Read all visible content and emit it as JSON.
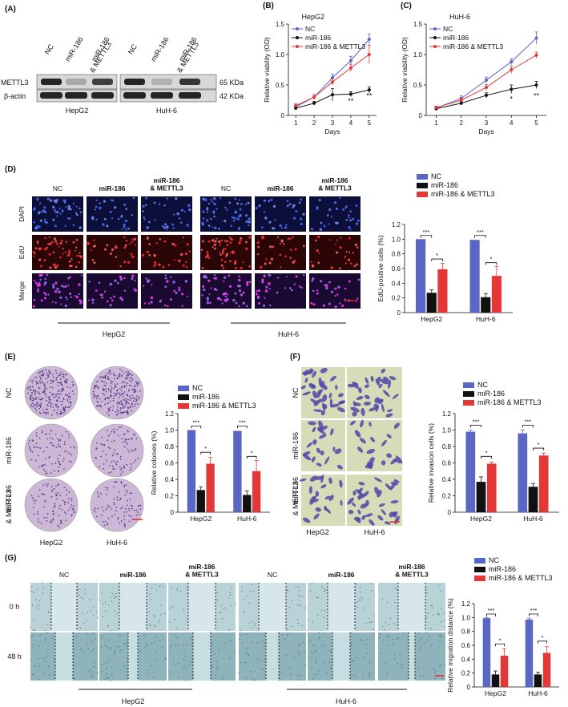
{
  "colors": {
    "nc": "#5a66c4",
    "mir": "#111111",
    "combo": "#e23838",
    "dapi_bg": "#0c0f3a",
    "edu_bg": "#2a0606",
    "merge_bg": "#1a0930",
    "wound_bg": "#b9d2d8",
    "wound_bg2": "#8fb3ba",
    "dish": "#cdb7d6",
    "stain": "#d7dcb8"
  },
  "legend": {
    "nc": "NC",
    "mir": "miR-186",
    "combo": "miR-186 & METTL3"
  },
  "legend_combo_multiline": {
    "line1": "miR-186",
    "line2": "& METTL3"
  },
  "panelA": {
    "label": "(A)",
    "lanes": [
      "NC",
      "miR-186",
      "miR-186\n& METTL3",
      "NC",
      "miR-186",
      "miR-186\n& METTL3"
    ],
    "rows": [
      "METTL3",
      "β-actin"
    ],
    "sizes": [
      "65 KDa",
      "42 KDa"
    ],
    "groups": [
      "HepG2",
      "HuH-6"
    ],
    "band_intensity": {
      "METTL3": [
        0.95,
        0.25,
        0.8,
        0.95,
        0.2,
        0.85
      ],
      "beta_actin": [
        0.95,
        0.95,
        0.95,
        0.95,
        0.95,
        0.95
      ]
    }
  },
  "panelD": {
    "label": "(D)",
    "cols": [
      "NC",
      "miR-186",
      "miR-186\n& METTL3",
      "NC",
      "miR-186",
      "miR-186\n& METTL3"
    ],
    "rows": [
      "DAPI",
      "EdU",
      "Merge"
    ],
    "groups": [
      "HepG2",
      "HuH-6"
    ]
  },
  "panelE": {
    "label": "(E)",
    "rows": [
      "NC",
      "miR-186",
      "miR-186\n& METTL3"
    ],
    "cols": [
      "HepG2",
      "HuH-6"
    ]
  },
  "panelF": {
    "label": "(F)",
    "rows": [
      "NC",
      "miR-186",
      "miR-186\n& METTL3"
    ],
    "cols": [
      "HepG2",
      "HuH-6"
    ]
  },
  "panelG": {
    "label": "(G)",
    "cols": [
      "NC",
      "miR-186",
      "miR-186\n& METTL3",
      "NC",
      "miR-186",
      "miR-186\n& METTL3"
    ],
    "rows": [
      "0 h",
      "48 h"
    ],
    "groups": [
      "HepG2",
      "HuH-6"
    ]
  },
  "chart_data": [
    {
      "id": "B",
      "label": "(B)",
      "type": "line",
      "title": "HepG2",
      "xlabel": "Days",
      "ylabel": "Relative viability (OD)",
      "x": [
        1,
        2,
        3,
        4,
        5
      ],
      "ylim": [
        0,
        1.5
      ],
      "yticks": [
        0,
        0.5,
        1.0,
        1.5
      ],
      "yticklabels": [
        "0",
        "0.5",
        "1.0",
        "1.5"
      ],
      "series": [
        {
          "name": "NC",
          "key": "nc",
          "values": [
            0.14,
            0.3,
            0.62,
            0.9,
            1.25
          ],
          "err": [
            0.03,
            0.04,
            0.06,
            0.07,
            0.09
          ]
        },
        {
          "name": "miR-186",
          "key": "mir",
          "values": [
            0.12,
            0.2,
            0.34,
            0.35,
            0.42
          ],
          "err": [
            0.02,
            0.03,
            0.1,
            0.04,
            0.05
          ]
        },
        {
          "name": "miR-186 & METTL3",
          "key": "combo",
          "values": [
            0.16,
            0.3,
            0.55,
            0.78,
            1.0
          ],
          "err": [
            0.03,
            0.04,
            0.05,
            0.06,
            0.15
          ]
        }
      ],
      "annotations": [
        {
          "x": 4,
          "y": 0.2,
          "text": "**"
        },
        {
          "x": 5,
          "y": 0.28,
          "text": "**"
        }
      ]
    },
    {
      "id": "C",
      "label": "(C)",
      "type": "line",
      "title": "HuH-6",
      "xlabel": "Days",
      "ylabel": "Relative viability (OD)",
      "x": [
        1,
        2,
        3,
        4,
        5
      ],
      "ylim": [
        0,
        1.5
      ],
      "yticks": [
        0,
        0.5,
        1.0,
        1.5
      ],
      "yticklabels": [
        "0",
        "0.5",
        "1.0",
        "1.5"
      ],
      "series": [
        {
          "name": "NC",
          "key": "nc",
          "values": [
            0.12,
            0.28,
            0.58,
            0.88,
            1.27
          ],
          "err": [
            0.03,
            0.04,
            0.05,
            0.05,
            0.1
          ]
        },
        {
          "name": "miR-186",
          "key": "mir",
          "values": [
            0.11,
            0.2,
            0.33,
            0.43,
            0.5
          ],
          "err": [
            0.02,
            0.03,
            0.04,
            0.07,
            0.06
          ]
        },
        {
          "name": "miR-186 & METTL3",
          "key": "combo",
          "values": [
            0.13,
            0.25,
            0.46,
            0.75,
            0.99
          ],
          "err": [
            0.02,
            0.03,
            0.05,
            0.06,
            0.05
          ]
        }
      ],
      "annotations": [
        {
          "x": 4,
          "y": 0.23,
          "text": "*"
        },
        {
          "x": 5,
          "y": 0.28,
          "text": "**"
        }
      ]
    },
    {
      "id": "D",
      "type": "bar",
      "ylabel": "EdU-positive cells (%)",
      "categories": [
        "HepG2",
        "HuH-6"
      ],
      "ylim": [
        0,
        1.2
      ],
      "yticks": [
        0,
        0.2,
        0.4,
        0.6,
        0.8,
        1.0,
        1.2
      ],
      "yticklabels": [
        "0",
        "0.2",
        "0.4",
        "0.6",
        "0.8",
        "1.0",
        "1.2"
      ],
      "series": [
        {
          "name": "NC",
          "key": "nc",
          "values": [
            1.0,
            0.99
          ],
          "err": [
            0,
            0
          ]
        },
        {
          "name": "miR-186",
          "key": "mir",
          "values": [
            0.27,
            0.21
          ],
          "err": [
            0.04,
            0.05
          ]
        },
        {
          "name": "miR-186 & METTL3",
          "key": "combo",
          "values": [
            0.59,
            0.5
          ],
          "err": [
            0.08,
            0.13
          ]
        }
      ],
      "sig": [
        {
          "cat": 0,
          "a": 0,
          "b": 1,
          "y": 1.05,
          "text": "***"
        },
        {
          "cat": 0,
          "a": 1,
          "b": 2,
          "y": 0.73,
          "text": "*"
        },
        {
          "cat": 1,
          "a": 0,
          "b": 1,
          "y": 1.05,
          "text": "***"
        },
        {
          "cat": 1,
          "a": 1,
          "b": 2,
          "y": 0.68,
          "text": "*"
        }
      ]
    },
    {
      "id": "E",
      "type": "bar",
      "ylabel": "Relative colonies (%)",
      "categories": [
        "HepG2",
        "HuH-6"
      ],
      "ylim": [
        0,
        1.2
      ],
      "yticks": [
        0,
        0.2,
        0.4,
        0.6,
        0.8,
        1.0,
        1.2
      ],
      "yticklabels": [
        "0",
        "0.2",
        "0.4",
        "0.6",
        "0.8",
        "1.0",
        "1.2"
      ],
      "series": [
        {
          "name": "NC",
          "key": "nc",
          "values": [
            1.0,
            0.99
          ],
          "err": [
            0,
            0
          ]
        },
        {
          "name": "miR-186",
          "key": "mir",
          "values": [
            0.27,
            0.21
          ],
          "err": [
            0.04,
            0.05
          ]
        },
        {
          "name": "miR-186 & METTL3",
          "key": "combo",
          "values": [
            0.59,
            0.5
          ],
          "err": [
            0.08,
            0.13
          ]
        }
      ],
      "sig": [
        {
          "cat": 0,
          "a": 0,
          "b": 1,
          "y": 1.05,
          "text": "***"
        },
        {
          "cat": 0,
          "a": 1,
          "b": 2,
          "y": 0.73,
          "text": "*"
        },
        {
          "cat": 1,
          "a": 0,
          "b": 1,
          "y": 1.05,
          "text": "***"
        },
        {
          "cat": 1,
          "a": 1,
          "b": 2,
          "y": 0.68,
          "text": "*"
        }
      ]
    },
    {
      "id": "F",
      "type": "bar",
      "ylabel": "Relative invasion cells (%)",
      "categories": [
        "HepG2",
        "HuH-6"
      ],
      "ylim": [
        0,
        1.2
      ],
      "yticks": [
        0,
        0.2,
        0.4,
        0.6,
        0.8,
        1.0,
        1.2
      ],
      "yticklabels": [
        "0",
        "0.2",
        "0.4",
        "0.6",
        "0.8",
        "1.0",
        "1.2"
      ],
      "series": [
        {
          "name": "NC",
          "key": "nc",
          "values": [
            0.98,
            0.96
          ],
          "err": [
            0.02,
            0.04
          ]
        },
        {
          "name": "miR-186",
          "key": "mir",
          "values": [
            0.37,
            0.31
          ],
          "err": [
            0.06,
            0.04
          ]
        },
        {
          "name": "miR-186 & METTL3",
          "key": "combo",
          "values": [
            0.59,
            0.69
          ],
          "err": [
            0.02,
            0.03
          ]
        }
      ],
      "sig": [
        {
          "cat": 0,
          "a": 0,
          "b": 1,
          "y": 1.06,
          "text": "***"
        },
        {
          "cat": 0,
          "a": 1,
          "b": 2,
          "y": 0.68,
          "text": "*"
        },
        {
          "cat": 1,
          "a": 0,
          "b": 1,
          "y": 1.06,
          "text": "***"
        },
        {
          "cat": 1,
          "a": 1,
          "b": 2,
          "y": 0.78,
          "text": "*"
        }
      ]
    },
    {
      "id": "G",
      "type": "bar",
      "ylabel": "Relative migration distance (%)",
      "categories": [
        "HepG2",
        "HuH-6"
      ],
      "ylim": [
        0,
        1.2
      ],
      "yticks": [
        0,
        0.2,
        0.4,
        0.6,
        0.8,
        1.0,
        1.2
      ],
      "yticklabels": [
        "0",
        "0.2",
        "0.4",
        "0.6",
        "0.8",
        "1.0",
        "1.2"
      ],
      "series": [
        {
          "name": "NC",
          "key": "nc",
          "values": [
            0.99,
            0.97
          ],
          "err": [
            0.01,
            0.02
          ]
        },
        {
          "name": "miR-186",
          "key": "mir",
          "values": [
            0.18,
            0.18
          ],
          "err": [
            0.05,
            0.03
          ]
        },
        {
          "name": "miR-186 & METTL3",
          "key": "combo",
          "values": [
            0.45,
            0.49
          ],
          "err": [
            0.1,
            0.09
          ]
        }
      ],
      "sig": [
        {
          "cat": 0,
          "a": 0,
          "b": 1,
          "y": 1.05,
          "text": "***"
        },
        {
          "cat": 0,
          "a": 1,
          "b": 2,
          "y": 0.62,
          "text": "*"
        },
        {
          "cat": 1,
          "a": 0,
          "b": 1,
          "y": 1.05,
          "text": "***"
        },
        {
          "cat": 1,
          "a": 1,
          "b": 2,
          "y": 0.66,
          "text": "*"
        }
      ]
    }
  ]
}
